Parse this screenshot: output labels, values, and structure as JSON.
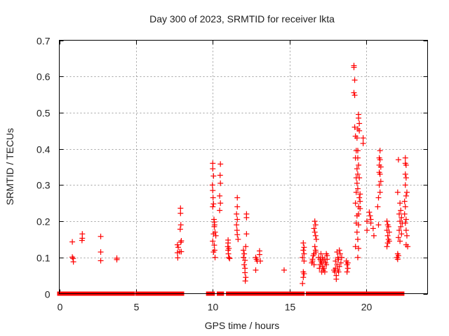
{
  "chart_data": {
    "type": "scatter",
    "title": "Day 300 of 2023, SRMTID for receiver lkta",
    "xlabel": "GPS time / hours",
    "ylabel": "SRMTID / TECUs",
    "xlim": [
      0,
      24
    ],
    "ylim": [
      0,
      0.7
    ],
    "xticks": [
      "0",
      "5",
      "10",
      "15",
      "20"
    ],
    "xtick_values": [
      0,
      5,
      10,
      15,
      20
    ],
    "yticks": [
      "0",
      "0.1",
      "0.2",
      "0.3",
      "0.4",
      "0.5",
      "0.6",
      "0.7"
    ],
    "ytick_values": [
      0,
      0.1,
      0.2,
      0.3,
      0.4,
      0.5,
      0.6,
      0.7
    ],
    "grid": true,
    "marker": "plus",
    "color": "#ff0000",
    "zero_intervals": [
      [
        0.0,
        0.92
      ],
      [
        1.1,
        1.5
      ],
      [
        1.56,
        3.9
      ],
      [
        3.92,
        4.5
      ],
      [
        4.58,
        4.8
      ],
      [
        5.1,
        5.2
      ],
      [
        5.3,
        5.38
      ],
      [
        5.45,
        5.55
      ],
      [
        5.65,
        5.75
      ],
      [
        5.8,
        7.7
      ],
      [
        7.72,
        8.0
      ],
      [
        9.7,
        10.0
      ],
      [
        10.4,
        10.6
      ],
      [
        11.0,
        11.2
      ],
      [
        11.22,
        11.4
      ],
      [
        11.45,
        11.63
      ],
      [
        11.66,
        12.05
      ],
      [
        12.1,
        12.3
      ],
      [
        12.3,
        12.6
      ],
      [
        12.63,
        12.8
      ],
      [
        12.85,
        12.98
      ],
      [
        13.0,
        13.3
      ],
      [
        13.55,
        14.9
      ],
      [
        14.92,
        15.2
      ],
      [
        15.25,
        15.35
      ],
      [
        15.4,
        15.55
      ],
      [
        15.7,
        15.85
      ],
      [
        16.2,
        16.6
      ],
      [
        16.65,
        16.7
      ],
      [
        16.75,
        16.8
      ],
      [
        16.85,
        16.9
      ],
      [
        16.95,
        17.0
      ],
      [
        17.05,
        17.1
      ],
      [
        17.15,
        17.2
      ],
      [
        17.25,
        17.3
      ],
      [
        17.4,
        17.8
      ],
      [
        17.9,
        18.25
      ],
      [
        18.4,
        18.45
      ],
      [
        18.5,
        18.95
      ],
      [
        19.0,
        19.3
      ],
      [
        19.35,
        19.55
      ],
      [
        19.7,
        19.75
      ],
      [
        19.8,
        20.9
      ],
      [
        20.95,
        21.55
      ],
      [
        21.6,
        22.35
      ]
    ],
    "points": [
      [
        0.85,
        0.143
      ],
      [
        0.85,
        0.101
      ],
      [
        0.9,
        0.097
      ],
      [
        0.92,
        0.088
      ],
      [
        1.5,
        0.165
      ],
      [
        1.5,
        0.153
      ],
      [
        1.48,
        0.147
      ],
      [
        2.7,
        0.158
      ],
      [
        2.7,
        0.115
      ],
      [
        2.7,
        0.091
      ],
      [
        3.75,
        0.098
      ],
      [
        3.75,
        0.094
      ],
      [
        7.7,
        0.135
      ],
      [
        7.75,
        0.128
      ],
      [
        7.7,
        0.113
      ],
      [
        7.72,
        0.099
      ],
      [
        7.9,
        0.236
      ],
      [
        7.9,
        0.222
      ],
      [
        7.92,
        0.19
      ],
      [
        7.88,
        0.178
      ],
      [
        7.95,
        0.146
      ],
      [
        7.92,
        0.142
      ],
      [
        7.85,
        0.116
      ],
      [
        7.95,
        0.116
      ],
      [
        10.0,
        0.36
      ],
      [
        10.0,
        0.345
      ],
      [
        10.05,
        0.325
      ],
      [
        9.98,
        0.3
      ],
      [
        10.0,
        0.285
      ],
      [
        10.02,
        0.265
      ],
      [
        10.05,
        0.248
      ],
      [
        10.0,
        0.24
      ],
      [
        10.08,
        0.205
      ],
      [
        10.1,
        0.198
      ],
      [
        10.05,
        0.165
      ],
      [
        10.0,
        0.145
      ],
      [
        10.1,
        0.134
      ],
      [
        10.12,
        0.12
      ],
      [
        10.05,
        0.115
      ],
      [
        10.15,
        0.1
      ],
      [
        10.1,
        0.185
      ],
      [
        10.12,
        0.19
      ],
      [
        10.15,
        0.17
      ],
      [
        10.2,
        0.16
      ],
      [
        10.5,
        0.358
      ],
      [
        10.48,
        0.327
      ],
      [
        10.5,
        0.305
      ],
      [
        10.45,
        0.27
      ],
      [
        10.5,
        0.25
      ],
      [
        10.45,
        0.23
      ],
      [
        11.0,
        0.148
      ],
      [
        11.0,
        0.14
      ],
      [
        10.98,
        0.13
      ],
      [
        11.05,
        0.125
      ],
      [
        11.0,
        0.12
      ],
      [
        11.02,
        0.11
      ],
      [
        11.05,
        0.1
      ],
      [
        11.1,
        0.097
      ],
      [
        11.6,
        0.265
      ],
      [
        11.6,
        0.24
      ],
      [
        11.55,
        0.22
      ],
      [
        11.6,
        0.205
      ],
      [
        11.55,
        0.19
      ],
      [
        11.58,
        0.175
      ],
      [
        11.6,
        0.163
      ],
      [
        11.65,
        0.15
      ],
      [
        12.0,
        0.12
      ],
      [
        12.05,
        0.11
      ],
      [
        12.0,
        0.1
      ],
      [
        12.1,
        0.092
      ],
      [
        12.05,
        0.08
      ],
      [
        12.1,
        0.07
      ],
      [
        12.1,
        0.058
      ],
      [
        12.15,
        0.045
      ],
      [
        12.12,
        0.035
      ],
      [
        12.2,
        0.22
      ],
      [
        12.2,
        0.21
      ],
      [
        12.2,
        0.165
      ],
      [
        12.15,
        0.13
      ],
      [
        12.8,
        0.1
      ],
      [
        12.85,
        0.095
      ],
      [
        12.9,
        0.09
      ],
      [
        12.8,
        0.065
      ],
      [
        13.05,
        0.118
      ],
      [
        13.05,
        0.108
      ],
      [
        13.1,
        0.09
      ],
      [
        14.65,
        0.065
      ],
      [
        15.9,
        0.14
      ],
      [
        15.95,
        0.128
      ],
      [
        15.9,
        0.12
      ],
      [
        15.95,
        0.11
      ],
      [
        15.85,
        0.1
      ],
      [
        15.95,
        0.09
      ],
      [
        15.9,
        0.06
      ],
      [
        15.95,
        0.055
      ],
      [
        15.9,
        0.045
      ],
      [
        15.85,
        0.028
      ],
      [
        16.5,
        0.095
      ],
      [
        16.55,
        0.105
      ],
      [
        16.5,
        0.09
      ],
      [
        16.6,
        0.08
      ],
      [
        16.45,
        0.085
      ],
      [
        16.65,
        0.2
      ],
      [
        16.7,
        0.19
      ],
      [
        16.6,
        0.18
      ],
      [
        16.65,
        0.17
      ],
      [
        16.7,
        0.16
      ],
      [
        16.75,
        0.15
      ],
      [
        16.65,
        0.13
      ],
      [
        16.7,
        0.12
      ],
      [
        16.72,
        0.115
      ],
      [
        16.6,
        0.11
      ],
      [
        16.9,
        0.1
      ],
      [
        17.0,
        0.095
      ],
      [
        17.05,
        0.09
      ],
      [
        17.1,
        0.085
      ],
      [
        17.0,
        0.08
      ],
      [
        17.2,
        0.09
      ],
      [
        17.15,
        0.075
      ],
      [
        17.3,
        0.095
      ],
      [
        17.25,
        0.07
      ],
      [
        17.35,
        0.085
      ],
      [
        17.1,
        0.06
      ],
      [
        17.2,
        0.065
      ],
      [
        17.4,
        0.08
      ],
      [
        17.3,
        0.06
      ],
      [
        16.95,
        0.07
      ],
      [
        17.05,
        0.11
      ],
      [
        17.45,
        0.105
      ],
      [
        17.4,
        0.11
      ],
      [
        17.45,
        0.095
      ],
      [
        17.15,
        0.1
      ],
      [
        17.9,
        0.065
      ],
      [
        17.95,
        0.06
      ],
      [
        18.0,
        0.07
      ],
      [
        18.05,
        0.05
      ],
      [
        18.1,
        0.08
      ],
      [
        18.0,
        0.09
      ],
      [
        18.15,
        0.1
      ],
      [
        18.2,
        0.095
      ],
      [
        18.25,
        0.12
      ],
      [
        18.1,
        0.115
      ],
      [
        18.3,
        0.11
      ],
      [
        18.35,
        0.085
      ],
      [
        18.25,
        0.075
      ],
      [
        18.4,
        0.1
      ],
      [
        18.2,
        0.06
      ],
      [
        18.05,
        0.04
      ],
      [
        18.15,
        0.065
      ],
      [
        18.7,
        0.09
      ],
      [
        18.75,
        0.08
      ],
      [
        18.8,
        0.07
      ],
      [
        18.75,
        0.06
      ],
      [
        18.8,
        0.085
      ],
      [
        19.2,
        0.63
      ],
      [
        19.2,
        0.625
      ],
      [
        19.25,
        0.59
      ],
      [
        19.2,
        0.555
      ],
      [
        19.25,
        0.548
      ],
      [
        19.5,
        0.495
      ],
      [
        19.5,
        0.485
      ],
      [
        19.55,
        0.47
      ],
      [
        19.45,
        0.455
      ],
      [
        19.55,
        0.45
      ],
      [
        19.25,
        0.46
      ],
      [
        19.3,
        0.435
      ],
      [
        19.4,
        0.43
      ],
      [
        19.8,
        0.43
      ],
      [
        19.8,
        0.415
      ],
      [
        19.35,
        0.395
      ],
      [
        19.45,
        0.395
      ],
      [
        19.3,
        0.375
      ],
      [
        19.45,
        0.375
      ],
      [
        19.5,
        0.355
      ],
      [
        19.4,
        0.345
      ],
      [
        19.45,
        0.33
      ],
      [
        19.35,
        0.32
      ],
      [
        19.55,
        0.32
      ],
      [
        19.4,
        0.305
      ],
      [
        19.45,
        0.29
      ],
      [
        19.35,
        0.28
      ],
      [
        19.6,
        0.275
      ],
      [
        19.55,
        0.265
      ],
      [
        19.6,
        0.255
      ],
      [
        19.3,
        0.25
      ],
      [
        19.5,
        0.24
      ],
      [
        19.6,
        0.235
      ],
      [
        19.4,
        0.215
      ],
      [
        19.5,
        0.22
      ],
      [
        19.35,
        0.195
      ],
      [
        19.5,
        0.19
      ],
      [
        19.4,
        0.17
      ],
      [
        19.45,
        0.15
      ],
      [
        19.5,
        0.125
      ],
      [
        19.3,
        0.13
      ],
      [
        19.45,
        0.1
      ],
      [
        20.2,
        0.225
      ],
      [
        20.25,
        0.215
      ],
      [
        20.3,
        0.205
      ],
      [
        20.3,
        0.195
      ],
      [
        20.45,
        0.18
      ],
      [
        20.05,
        0.2
      ],
      [
        20.05,
        0.175
      ],
      [
        20.5,
        0.16
      ],
      [
        20.8,
        0.19
      ],
      [
        20.75,
        0.24
      ],
      [
        20.9,
        0.395
      ],
      [
        20.85,
        0.375
      ],
      [
        20.9,
        0.37
      ],
      [
        20.85,
        0.355
      ],
      [
        20.95,
        0.35
      ],
      [
        20.85,
        0.335
      ],
      [
        20.9,
        0.33
      ],
      [
        20.95,
        0.31
      ],
      [
        20.85,
        0.3
      ],
      [
        20.9,
        0.28
      ],
      [
        20.8,
        0.265
      ],
      [
        21.35,
        0.2
      ],
      [
        21.4,
        0.19
      ],
      [
        21.45,
        0.185
      ],
      [
        21.35,
        0.175
      ],
      [
        21.5,
        0.17
      ],
      [
        21.4,
        0.16
      ],
      [
        21.45,
        0.15
      ],
      [
        21.4,
        0.14
      ],
      [
        21.35,
        0.13
      ],
      [
        21.5,
        0.145
      ],
      [
        22.1,
        0.37
      ],
      [
        22.05,
        0.28
      ],
      [
        22.2,
        0.25
      ],
      [
        22.25,
        0.23
      ],
      [
        22.15,
        0.22
      ],
      [
        22.3,
        0.21
      ],
      [
        22.2,
        0.2
      ],
      [
        22.35,
        0.195
      ],
      [
        22.25,
        0.185
      ],
      [
        22.15,
        0.175
      ],
      [
        22.3,
        0.165
      ],
      [
        22.1,
        0.155
      ],
      [
        22.2,
        0.145
      ],
      [
        22.05,
        0.11
      ],
      [
        22.1,
        0.105
      ],
      [
        22.05,
        0.095
      ],
      [
        22.0,
        0.1
      ],
      [
        22.55,
        0.375
      ],
      [
        22.55,
        0.36
      ],
      [
        22.6,
        0.355
      ],
      [
        22.55,
        0.33
      ],
      [
        22.6,
        0.32
      ],
      [
        22.55,
        0.3
      ],
      [
        22.65,
        0.28
      ],
      [
        22.6,
        0.27
      ],
      [
        22.5,
        0.255
      ],
      [
        22.55,
        0.24
      ],
      [
        22.5,
        0.22
      ],
      [
        22.6,
        0.205
      ],
      [
        22.55,
        0.195
      ],
      [
        22.6,
        0.175
      ],
      [
        22.65,
        0.16
      ],
      [
        22.6,
        0.135
      ],
      [
        22.7,
        0.13
      ]
    ]
  }
}
